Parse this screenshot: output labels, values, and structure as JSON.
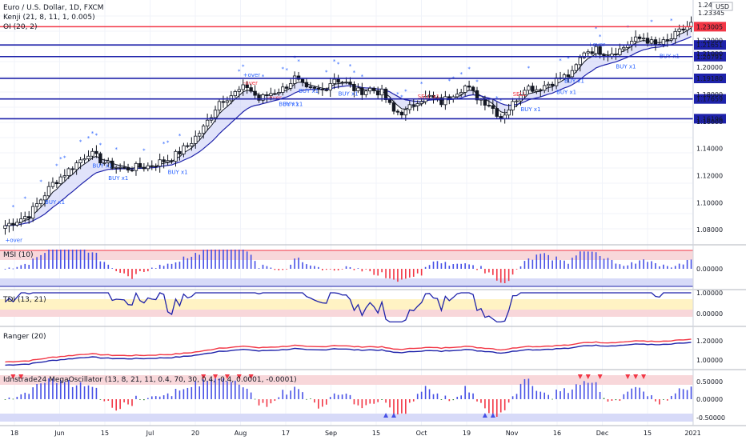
{
  "header": {
    "title": "Euro / U.S. Dollar, 1D, FXCM",
    "indicator_line_1": "Kenji (21, 8, 11, 1, 0.005)",
    "indicator_line_2": "OI (20, 2)",
    "currency": "USD"
  },
  "time_axis": {
    "labels": [
      "18",
      "Jun",
      "15",
      "Jul",
      "20",
      "Aug",
      "17",
      "Sep",
      "15",
      "Oct",
      "19",
      "Nov",
      "16",
      "Dec",
      "15",
      "2021"
    ]
  },
  "price_levels": {
    "red": [
      "1.23005"
    ],
    "blue": [
      "1.21651",
      "1.20791",
      "1.19180",
      "1.17659",
      "1.16196"
    ],
    "top_labels": [
      "1.24000",
      "1.23345"
    ]
  },
  "chart_data": [
    {
      "type": "candlestick",
      "title": "Euro / U.S. Dollar, 1D, FXCM",
      "ylim": [
        1.07,
        1.245
      ],
      "yticks": [
        "1.22000",
        "1.21000",
        "1.20000",
        "1.18000",
        "1.16000",
        "1.14000",
        "1.12000",
        "1.10000",
        "1.08000"
      ],
      "series_close_anchors": [
        [
          0,
          1.083
        ],
        [
          6,
          1.091
        ],
        [
          12,
          1.114
        ],
        [
          18,
          1.129
        ],
        [
          21,
          1.137
        ],
        [
          26,
          1.128
        ],
        [
          30,
          1.125
        ],
        [
          36,
          1.127
        ],
        [
          42,
          1.133
        ],
        [
          46,
          1.142
        ],
        [
          50,
          1.155
        ],
        [
          54,
          1.175
        ],
        [
          58,
          1.181
        ],
        [
          61,
          1.186
        ],
        [
          64,
          1.176
        ],
        [
          67,
          1.181
        ],
        [
          70,
          1.184
        ],
        [
          73,
          1.192
        ],
        [
          76,
          1.183
        ],
        [
          80,
          1.183
        ],
        [
          83,
          1.192
        ],
        [
          86,
          1.188
        ],
        [
          89,
          1.182
        ],
        [
          92,
          1.184
        ],
        [
          95,
          1.181
        ],
        [
          98,
          1.167
        ],
        [
          101,
          1.167
        ],
        [
          104,
          1.176
        ],
        [
          107,
          1.178
        ],
        [
          110,
          1.174
        ],
        [
          113,
          1.181
        ],
        [
          116,
          1.186
        ],
        [
          119,
          1.178
        ],
        [
          122,
          1.173
        ],
        [
          125,
          1.163
        ],
        [
          128,
          1.173
        ],
        [
          131,
          1.186
        ],
        [
          134,
          1.184
        ],
        [
          137,
          1.188
        ],
        [
          140,
          1.192
        ],
        [
          143,
          1.195
        ],
        [
          146,
          1.212
        ],
        [
          149,
          1.213
        ],
        [
          152,
          1.21
        ],
        [
          155,
          1.213
        ],
        [
          158,
          1.219
        ],
        [
          161,
          1.222
        ],
        [
          164,
          1.216
        ],
        [
          167,
          1.219
        ],
        [
          170,
          1.226
        ],
        [
          173,
          1.232
        ]
      ],
      "signal_labels": [
        {
          "text": "+over",
          "color": "#2962ff"
        },
        {
          "text": "BUY x1",
          "color": "#2962ff"
        },
        {
          "text": "BUY x1",
          "color": "#2962ff"
        },
        {
          "text": "BUY x1",
          "color": "#2962ff"
        },
        {
          "text": "BUY x1",
          "color": "#2962ff"
        },
        {
          "text": "BUY x1",
          "color": "#2962ff"
        },
        {
          "text": "+over",
          "color": "#2962ff"
        },
        {
          "text": "-over",
          "color": "#f23645"
        },
        {
          "text": "-over",
          "color": "#f23645"
        },
        {
          "text": "BUY x1",
          "color": "#2962ff"
        },
        {
          "text": "BUY x1",
          "color": "#2962ff"
        },
        {
          "text": "BUY x1",
          "color": "#2962ff"
        },
        {
          "text": "SELL x1",
          "color": "#f23645"
        },
        {
          "text": "SELL",
          "color": "#f23645"
        },
        {
          "text": "BUY x1",
          "color": "#2962ff"
        },
        {
          "text": "BUY x1",
          "color": "#2962ff"
        },
        {
          "text": "BUY x1",
          "color": "#2962ff"
        },
        {
          "text": "+over",
          "color": "#2962ff"
        },
        {
          "text": "BUY x1",
          "color": "#2962ff"
        },
        {
          "text": "BUY x1",
          "color": "#2962ff"
        }
      ]
    },
    {
      "type": "bar",
      "title": "MSI (10)",
      "yticks": [
        "0.00000"
      ]
    },
    {
      "type": "line",
      "title": "TDI (13, 21)",
      "yticks": [
        "1.00000",
        "0.00000"
      ]
    },
    {
      "type": "line",
      "title": "Ranger (20)",
      "yticks": [
        "1.20000",
        "1.00000"
      ]
    },
    {
      "type": "bar",
      "title": "Idnstrade24 MegaOscillator (13, 8, 21, 11, 0.4, 70, 30, 0.4, -0.4, 0.0001, -0.0001)",
      "yticks": [
        "0.50000",
        "0.00000",
        "-0.50000"
      ]
    }
  ],
  "colors": {
    "up": "#ffffff",
    "down": "#131722",
    "red_level": "#f23645",
    "blue_level": "#1e22aa",
    "band_fill": "#c8ccf5",
    "band_line": "#1e22aa",
    "positive_bar": "#4650e6",
    "negative_bar": "#f23645",
    "neutral_bar": "#2e7d32"
  }
}
